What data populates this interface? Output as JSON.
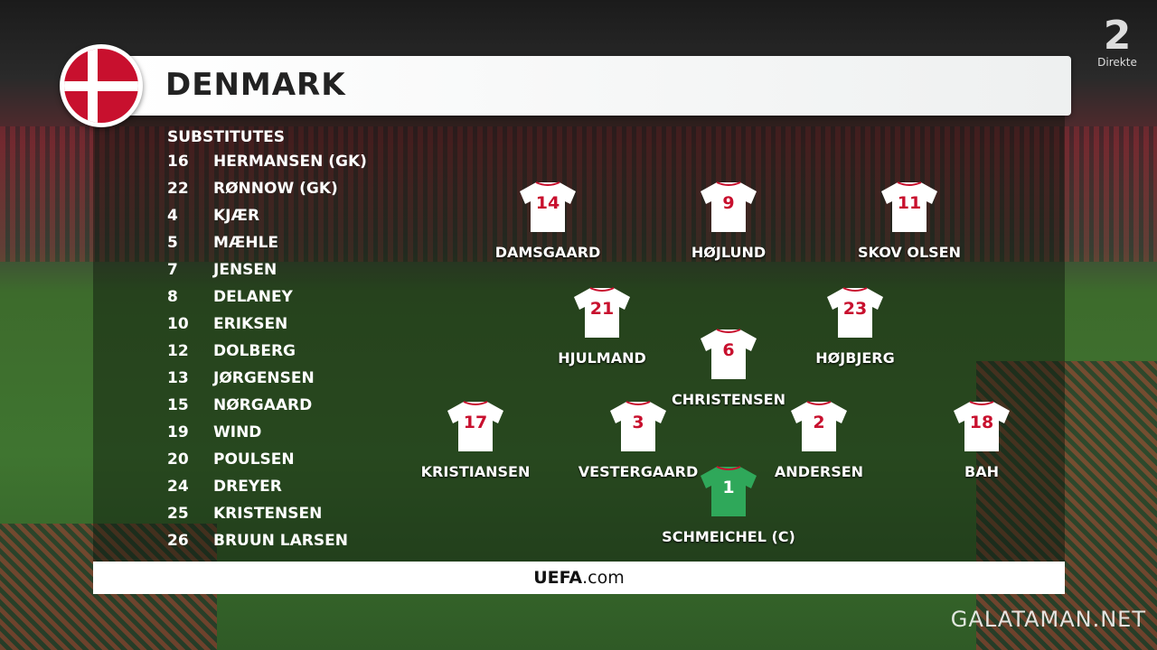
{
  "team": {
    "name": "DENMARK",
    "flag": "denmark-flag"
  },
  "broadcaster": {
    "logo": "2",
    "label": "Direkte"
  },
  "substitutes": {
    "heading": "SUBSTITUTES",
    "players": [
      {
        "number": "16",
        "name": "HERMANSEN (GK)"
      },
      {
        "number": "22",
        "name": "RØNNOW (GK)"
      },
      {
        "number": "4",
        "name": "KJÆR"
      },
      {
        "number": "5",
        "name": "MÆHLE"
      },
      {
        "number": "7",
        "name": "JENSEN"
      },
      {
        "number": "8",
        "name": "DELANEY"
      },
      {
        "number": "10",
        "name": "ERIKSEN"
      },
      {
        "number": "12",
        "name": "DOLBERG"
      },
      {
        "number": "13",
        "name": "JØRGENSEN"
      },
      {
        "number": "15",
        "name": "NØRGAARD"
      },
      {
        "number": "19",
        "name": "WIND"
      },
      {
        "number": "20",
        "name": "POULSEN"
      },
      {
        "number": "24",
        "name": "DREYER"
      },
      {
        "number": "25",
        "name": "KRISTENSEN"
      },
      {
        "number": "26",
        "name": "BRUUN LARSEN"
      }
    ]
  },
  "lineup": [
    {
      "number": "14",
      "name": "DAMSGAARD"
    },
    {
      "number": "9",
      "name": "HØJLUND"
    },
    {
      "number": "11",
      "name": "SKOV OLSEN"
    },
    {
      "number": "21",
      "name": "HJULMAND"
    },
    {
      "number": "23",
      "name": "HØJBJERG"
    },
    {
      "number": "6",
      "name": "CHRISTENSEN"
    },
    {
      "number": "17",
      "name": "KRISTIANSEN"
    },
    {
      "number": "3",
      "name": "VESTERGAARD"
    },
    {
      "number": "2",
      "name": "ANDERSEN"
    },
    {
      "number": "18",
      "name": "BAH"
    },
    {
      "number": "1",
      "name": "SCHMEICHEL (C)",
      "goalkeeper": true
    }
  ],
  "footer": {
    "brand": "UEFA",
    "suffix": ".com"
  },
  "watermark": "GALATAMAN.NET",
  "colors": {
    "shirt": "#ffffff",
    "shirt_number": "#c8102e",
    "goalkeeper_shirt": "#2fa85a",
    "flag_red": "#c8102e"
  }
}
